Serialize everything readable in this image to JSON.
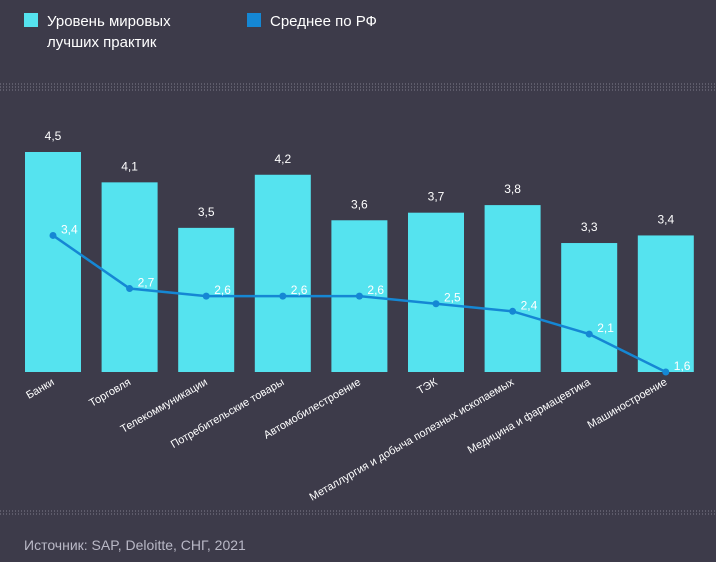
{
  "legend": {
    "best_practice_line1": "Уровень мировых",
    "best_practice_line2": "лучших практик",
    "russia_average": "Среднее по РФ"
  },
  "source": "Источник: SAP, Deloitte, СНГ, 2021",
  "colors": {
    "background": "#3d3b4a",
    "bar": "#55e3ef",
    "line": "#1587d4",
    "separator": "#7f7e8c"
  },
  "chart_data": {
    "type": "bar",
    "title": "",
    "xlabel": "",
    "ylabel": "",
    "ylim": [
      1.6,
      4.6
    ],
    "categories": [
      "Банки",
      "Торговля",
      "Телекоммуникации",
      "Потребительские товары",
      "Автомобилестроение",
      "ТЭК",
      "Металлургия и добыча полезных ископаемых",
      "Медицина и фармацевтика",
      "Машиностроение"
    ],
    "series": [
      {
        "name": "Уровень мировых лучших практик",
        "type": "bar",
        "values": [
          4.5,
          4.1,
          3.5,
          4.2,
          3.6,
          3.7,
          3.8,
          3.3,
          3.4
        ],
        "labels": [
          "4,5",
          "4,1",
          "3,5",
          "4,2",
          "3,6",
          "3,7",
          "3,8",
          "3,3",
          "3,4"
        ]
      },
      {
        "name": "Среднее по РФ",
        "type": "line",
        "values": [
          3.4,
          2.7,
          2.6,
          2.6,
          2.6,
          2.5,
          2.4,
          2.1,
          1.6
        ],
        "labels": [
          "3,4",
          "2,7",
          "2,6",
          "2,6",
          "2,6",
          "2,5",
          "2,4",
          "2,1",
          "1,6"
        ]
      }
    ]
  }
}
